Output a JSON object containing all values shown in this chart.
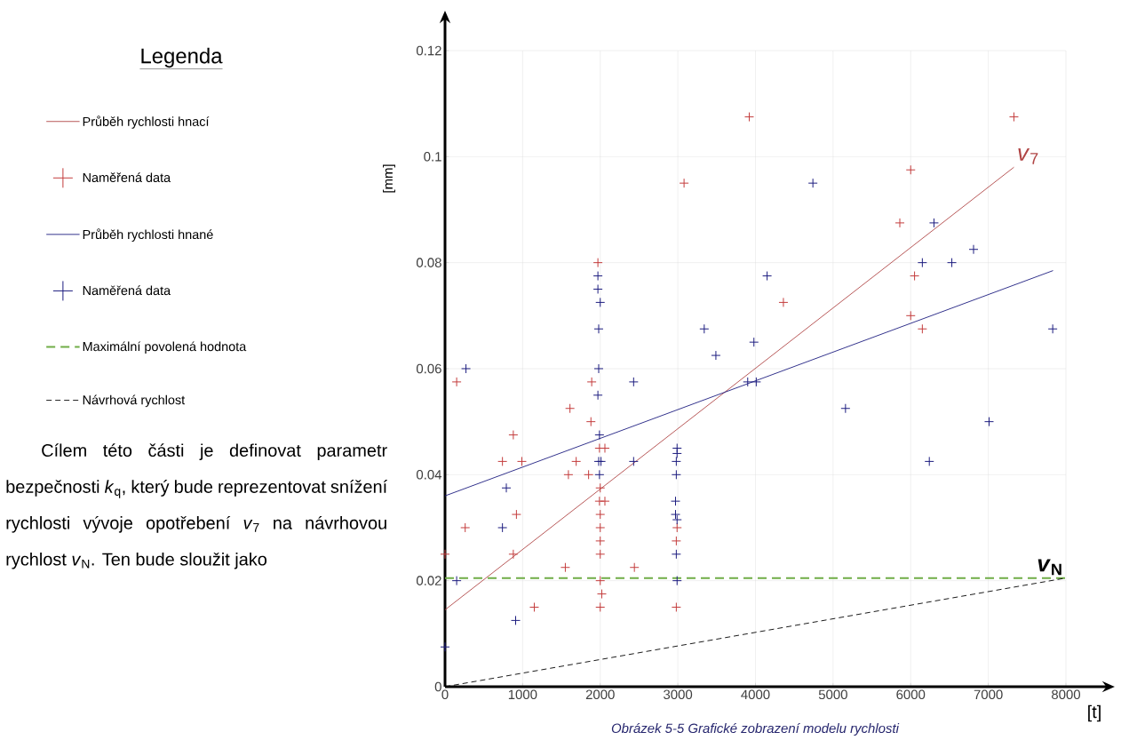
{
  "chart_data": {
    "type": "scatter",
    "xlabel": "[t]",
    "ylabel": "[mm]",
    "legend_title": "Legenda",
    "legend": "left",
    "grid": true,
    "xlim": [
      0,
      8000
    ],
    "ylim": [
      0,
      0.12
    ],
    "xticks": [
      0,
      1000,
      2000,
      3000,
      4000,
      5000,
      6000,
      7000,
      8000
    ],
    "yticks": [
      0,
      0.02,
      0.04,
      0.06,
      0.08,
      0.1,
      0.12
    ],
    "series": [
      {
        "name": "Průběh rychlosti hnací",
        "type": "line",
        "color": "#b04545",
        "line_style": "solid",
        "marker": "none",
        "x": [
          0,
          7330
        ],
        "values": [
          0.0145,
          0.098
        ]
      },
      {
        "name": "Naměřená data",
        "type": "scatter",
        "color": "#c43c3c",
        "marker": "cross",
        "x": [
          0,
          150,
          260,
          740,
          880,
          880,
          920,
          990,
          1150,
          1550,
          1590,
          1610,
          1690,
          1850,
          1880,
          1890,
          1970,
          1990,
          2060,
          2000,
          1990,
          2060,
          2000,
          2000,
          2000,
          2000,
          2000,
          2020,
          2000,
          2440,
          2990,
          2980,
          2980,
          3080,
          3920,
          4360,
          5860,
          6000,
          6050,
          6000,
          6150,
          7330
        ],
        "values": [
          0.025,
          0.0575,
          0.03,
          0.0425,
          0.0475,
          0.025,
          0.0325,
          0.0425,
          0.015,
          0.0225,
          0.04,
          0.0525,
          0.0425,
          0.04,
          0.05,
          0.0575,
          0.08,
          0.045,
          0.045,
          0.0375,
          0.035,
          0.035,
          0.0325,
          0.03,
          0.0275,
          0.025,
          0.02,
          0.0175,
          0.015,
          0.0225,
          0.03,
          0.0275,
          0.015,
          0.095,
          0.1075,
          0.0725,
          0.0875,
          0.0975,
          0.0775,
          0.07,
          0.0675,
          0.1075
        ]
      },
      {
        "name": "Průběh rychlosti hnané",
        "type": "line",
        "color": "#1c1c80",
        "line_style": "solid",
        "marker": "none",
        "x": [
          0,
          7834
        ],
        "values": [
          0.036,
          0.0785
        ]
      },
      {
        "name": "Naměřená data",
        "type": "scatter",
        "color": "#1c1c80",
        "marker": "cross",
        "x": [
          0,
          150,
          270,
          740,
          790,
          910,
          1970,
          1970,
          2000,
          1980,
          1980,
          1970,
          1990,
          1980,
          2010,
          1990,
          2430,
          2430,
          2990,
          2990,
          2980,
          2980,
          2970,
          2970,
          2990,
          2980,
          2990,
          3340,
          3490,
          3900,
          4010,
          3980,
          4150,
          4740,
          5160,
          6150,
          6240,
          6300,
          6530,
          6810,
          7010,
          7830
        ],
        "values": [
          0.0075,
          0.02,
          0.06,
          0.03,
          0.0375,
          0.0125,
          0.0775,
          0.075,
          0.0725,
          0.0675,
          0.06,
          0.055,
          0.0475,
          0.0425,
          0.0425,
          0.04,
          0.0575,
          0.0425,
          0.045,
          0.044,
          0.0425,
          0.04,
          0.035,
          0.0325,
          0.0315,
          0.025,
          0.02,
          0.0675,
          0.0625,
          0.0575,
          0.0575,
          0.065,
          0.0775,
          0.095,
          0.0525,
          0.08,
          0.0425,
          0.0875,
          0.08,
          0.0825,
          0.05,
          0.0675
        ]
      },
      {
        "name": "Maximální povolená hodnota",
        "type": "line",
        "color": "#70ad47",
        "line_style": "dashed",
        "marker": "none",
        "x": [
          0,
          8000
        ],
        "values": [
          0.0205,
          0.0205
        ]
      },
      {
        "name": "Návrhová rychlost",
        "type": "line",
        "color": "#000000",
        "line_style": "dashed",
        "marker": "none",
        "x": [
          0,
          8000
        ],
        "values": [
          0,
          0.0205
        ]
      }
    ],
    "annotations": [
      "*v*$_{7}$",
      "*v*$_{N}$",
      "Obrázek 5-5 Grafické zobrazení modelu rychlosti",
      "Cílem této části je definovat parametr bezpečnosti *k*$_{q}$, který bude reprezentovat snížení rychlosti vývoje opotřebení *v*$_{7}$ na návrhovou rychlost *v*$_{N}$. Ten bude sloužit jako"
    ]
  }
}
